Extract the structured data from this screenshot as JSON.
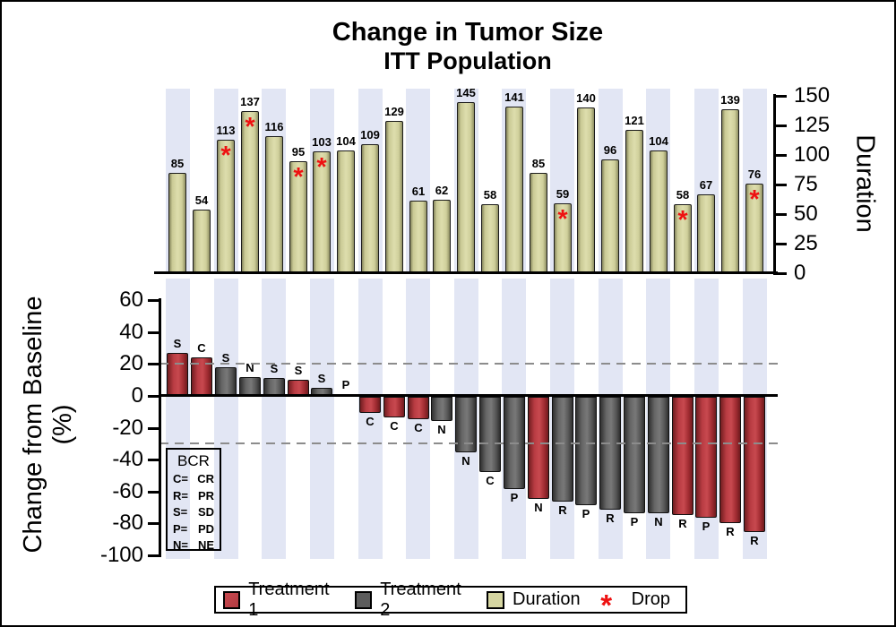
{
  "title": {
    "line1": "Change in Tumor Size",
    "line2": "ITT Population"
  },
  "axes": {
    "duration_axis_label": "Duration",
    "baseline_axis_label_line1": "Change from Baseline",
    "baseline_axis_label_line2": "(%)"
  },
  "bcr_legend": {
    "title": "BCR",
    "entries": [
      {
        "code": "C=",
        "label": "CR"
      },
      {
        "code": "R=",
        "label": "PR"
      },
      {
        "code": "S=",
        "label": "SD"
      },
      {
        "code": "P=",
        "label": "PD"
      },
      {
        "code": "N=",
        "label": "NE"
      }
    ]
  },
  "legend": {
    "items": [
      {
        "label": "Treatment 1",
        "swatch": "treatment1"
      },
      {
        "label": "Treatment 2",
        "swatch": "treatment2"
      },
      {
        "label": "Duration",
        "swatch": "duration"
      },
      {
        "label": "Drop",
        "swatch": "asterisk"
      }
    ]
  },
  "colors": {
    "treatment1": "#b23a41",
    "treatment2": "#5c5c5c",
    "duration": "#d6d6a1",
    "drop_asterisk": "#ee1111",
    "band": "#e2e6f4",
    "reference_line": "#8c8c8c"
  },
  "chart_data": [
    {
      "type": "bar",
      "title": "Duration",
      "ylabel": "Duration",
      "ylim": [
        0,
        150
      ],
      "yticks": [
        0,
        25,
        50,
        75,
        100,
        125,
        150
      ],
      "legend_position": "bottom",
      "grid": false,
      "values": [
        85,
        54,
        113,
        137,
        116,
        95,
        103,
        104,
        109,
        129,
        61,
        62,
        145,
        58,
        141,
        85,
        59,
        140,
        96,
        121,
        104,
        58,
        67,
        139,
        76
      ],
      "drop_marker": [
        false,
        false,
        true,
        true,
        false,
        true,
        true,
        false,
        false,
        false,
        false,
        false,
        false,
        false,
        false,
        false,
        true,
        false,
        false,
        false,
        false,
        true,
        false,
        false,
        true
      ]
    },
    {
      "type": "bar",
      "title": "Change from Baseline (%)",
      "ylabel": "Change from Baseline (%)",
      "ylim": [
        -100,
        60
      ],
      "yticks": [
        60,
        40,
        20,
        0,
        -20,
        -40,
        -60,
        -80,
        -100
      ],
      "reference_lines": [
        20,
        -30
      ],
      "grid": false,
      "values": [
        27,
        24,
        18,
        12,
        11,
        10,
        5,
        1,
        -10,
        -13,
        -14,
        -15,
        -35,
        -47,
        -58,
        -64,
        -66,
        -68,
        -71,
        -73,
        -73,
        -74,
        -76,
        -79,
        -85
      ],
      "response_labels": [
        "S",
        "C",
        "S",
        "N",
        "S",
        "S",
        "S",
        "P",
        "C",
        "C",
        "C",
        "N",
        "N",
        "C",
        "P",
        "N",
        "R",
        "P",
        "R",
        "P",
        "N",
        "R",
        "P",
        "R",
        "R"
      ],
      "treatment": [
        1,
        1,
        2,
        2,
        2,
        1,
        2,
        2,
        1,
        1,
        1,
        2,
        2,
        2,
        2,
        1,
        2,
        2,
        2,
        2,
        2,
        1,
        1,
        1,
        1
      ],
      "series": [
        {
          "name": "Treatment 1",
          "color": "#b23a41"
        },
        {
          "name": "Treatment 2",
          "color": "#5c5c5c"
        }
      ]
    }
  ]
}
